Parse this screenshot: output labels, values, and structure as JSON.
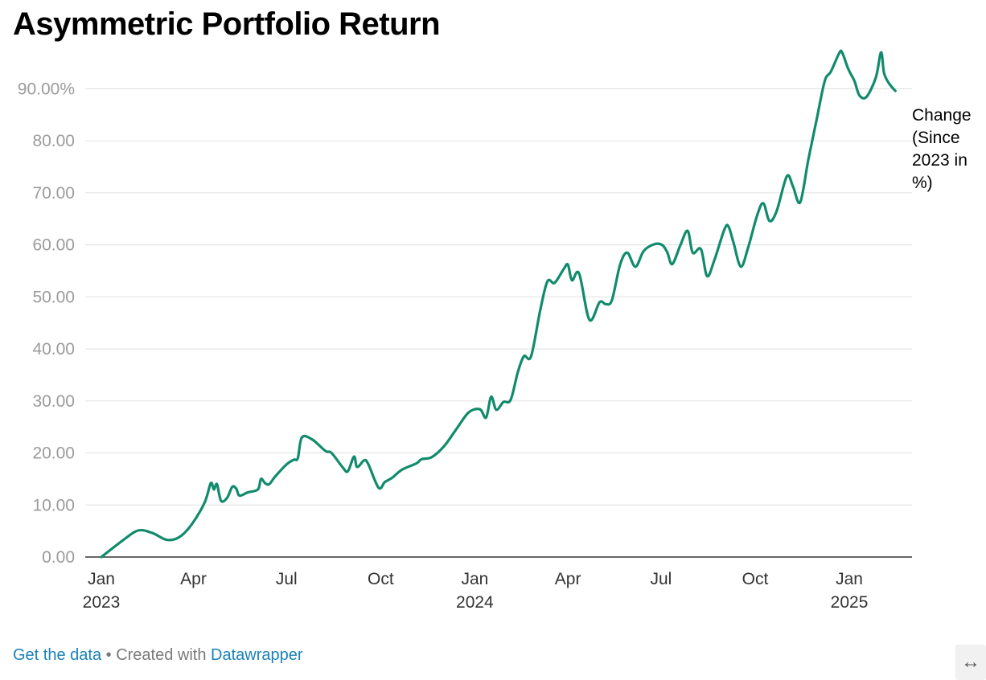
{
  "title": "Asymmetric Portfolio Return",
  "chart_data": {
    "type": "line",
    "title": "Asymmetric Portfolio Return",
    "xlabel": "",
    "ylabel": "",
    "ylim": [
      0,
      97.8
    ],
    "y_ticks": [
      0,
      10,
      20,
      30,
      40,
      50,
      60,
      70,
      80,
      90
    ],
    "y_tick_labels": [
      "0.00",
      "10.00",
      "20.00",
      "30.00",
      "40.00",
      "50.00",
      "60.00",
      "70.00",
      "80.00",
      "90.00%"
    ],
    "x_ticks": [
      {
        "date": "2023-01-01",
        "label": "Jan",
        "year": "2023"
      },
      {
        "date": "2023-04-01",
        "label": "Apr",
        "year": ""
      },
      {
        "date": "2023-07-01",
        "label": "Jul",
        "year": ""
      },
      {
        "date": "2023-10-01",
        "label": "Oct",
        "year": ""
      },
      {
        "date": "2024-01-01",
        "label": "Jan",
        "year": "2024"
      },
      {
        "date": "2024-04-01",
        "label": "Apr",
        "year": ""
      },
      {
        "date": "2024-07-01",
        "label": "Jul",
        "year": ""
      },
      {
        "date": "2024-10-01",
        "label": "Oct",
        "year": ""
      },
      {
        "date": "2025-01-01",
        "label": "Jan",
        "year": "2025"
      }
    ],
    "grid": true,
    "legend": "none",
    "color": "#118b6c",
    "series": [
      {
        "name": "Change (Since 2023 in %)",
        "points": [
          [
            "2023-01-01",
            0.0
          ],
          [
            "2023-01-22",
            3.2
          ],
          [
            "2023-02-06",
            5.1
          ],
          [
            "2023-02-20",
            4.6
          ],
          [
            "2023-03-06",
            3.3
          ],
          [
            "2023-03-18",
            3.8
          ],
          [
            "2023-03-30",
            6.2
          ],
          [
            "2023-04-12",
            10.5
          ],
          [
            "2023-04-18",
            14.2
          ],
          [
            "2023-04-21",
            13.0
          ],
          [
            "2023-04-24",
            14.0
          ],
          [
            "2023-04-28",
            10.8
          ],
          [
            "2023-05-04",
            11.4
          ],
          [
            "2023-05-09",
            13.5
          ],
          [
            "2023-05-13",
            13.1
          ],
          [
            "2023-05-16",
            11.8
          ],
          [
            "2023-05-24",
            12.4
          ],
          [
            "2023-06-03",
            13.0
          ],
          [
            "2023-06-06",
            15.0
          ],
          [
            "2023-06-10",
            14.2
          ],
          [
            "2023-06-14",
            14.0
          ],
          [
            "2023-06-20",
            15.5
          ],
          [
            "2023-07-01",
            17.8
          ],
          [
            "2023-07-08",
            18.7
          ],
          [
            "2023-07-12",
            19.0
          ],
          [
            "2023-07-16",
            23.0
          ],
          [
            "2023-07-26",
            22.6
          ],
          [
            "2023-08-08",
            20.4
          ],
          [
            "2023-08-14",
            20.0
          ],
          [
            "2023-08-25",
            17.2
          ],
          [
            "2023-08-30",
            16.5
          ],
          [
            "2023-09-05",
            19.3
          ],
          [
            "2023-09-08",
            17.3
          ],
          [
            "2023-09-15",
            18.6
          ],
          [
            "2023-09-19",
            17.8
          ],
          [
            "2023-09-29",
            13.3
          ],
          [
            "2023-10-05",
            14.4
          ],
          [
            "2023-10-12",
            15.2
          ],
          [
            "2023-10-22",
            16.8
          ],
          [
            "2023-11-05",
            18.0
          ],
          [
            "2023-11-10",
            18.8
          ],
          [
            "2023-11-20",
            19.2
          ],
          [
            "2023-12-02",
            21.3
          ],
          [
            "2023-12-14",
            24.6
          ],
          [
            "2023-12-26",
            27.8
          ],
          [
            "2024-01-06",
            28.4
          ],
          [
            "2024-01-12",
            26.8
          ],
          [
            "2024-01-17",
            30.8
          ],
          [
            "2024-01-22",
            28.3
          ],
          [
            "2024-01-29",
            29.8
          ],
          [
            "2024-02-05",
            30.2
          ],
          [
            "2024-02-12",
            35.5
          ],
          [
            "2024-02-18",
            38.6
          ],
          [
            "2024-02-25",
            38.6
          ],
          [
            "2024-03-05",
            47.5
          ],
          [
            "2024-03-12",
            53.0
          ],
          [
            "2024-03-19",
            52.7
          ],
          [
            "2024-03-28",
            55.4
          ],
          [
            "2024-04-01",
            56.2
          ],
          [
            "2024-04-05",
            53.2
          ],
          [
            "2024-04-12",
            54.5
          ],
          [
            "2024-04-22",
            45.6
          ],
          [
            "2024-05-02",
            49.0
          ],
          [
            "2024-05-08",
            48.6
          ],
          [
            "2024-05-14",
            49.4
          ],
          [
            "2024-05-22",
            56.2
          ],
          [
            "2024-05-29",
            58.5
          ],
          [
            "2024-06-06",
            55.8
          ],
          [
            "2024-06-14",
            58.8
          ],
          [
            "2024-06-24",
            60.1
          ],
          [
            "2024-07-02",
            60.0
          ],
          [
            "2024-07-07",
            58.6
          ],
          [
            "2024-07-12",
            56.3
          ],
          [
            "2024-07-20",
            60.0
          ],
          [
            "2024-07-27",
            62.7
          ],
          [
            "2024-08-01",
            58.5
          ],
          [
            "2024-08-09",
            59.2
          ],
          [
            "2024-08-15",
            54.0
          ],
          [
            "2024-08-22",
            57.0
          ],
          [
            "2024-09-01",
            63.0
          ],
          [
            "2024-09-05",
            63.5
          ],
          [
            "2024-09-10",
            60.3
          ],
          [
            "2024-09-17",
            55.8
          ],
          [
            "2024-09-24",
            59.4
          ],
          [
            "2024-10-03",
            65.7
          ],
          [
            "2024-10-09",
            68.0
          ],
          [
            "2024-10-15",
            64.6
          ],
          [
            "2024-10-22",
            66.5
          ],
          [
            "2024-11-01",
            73.2
          ],
          [
            "2024-11-07",
            71.2
          ],
          [
            "2024-11-14",
            68.2
          ],
          [
            "2024-11-22",
            76.4
          ],
          [
            "2024-11-30",
            84.0
          ],
          [
            "2024-12-08",
            91.5
          ],
          [
            "2024-12-14",
            93.3
          ],
          [
            "2024-12-22",
            96.8
          ],
          [
            "2024-12-25",
            97.0
          ],
          [
            "2024-12-31",
            93.8
          ],
          [
            "2025-01-06",
            91.5
          ],
          [
            "2025-01-11",
            88.7
          ],
          [
            "2025-01-18",
            88.5
          ],
          [
            "2025-01-27",
            92.2
          ],
          [
            "2025-02-01",
            97.0
          ],
          [
            "2025-02-04",
            93.0
          ],
          [
            "2025-02-09",
            91.0
          ],
          [
            "2025-02-15",
            89.6
          ]
        ]
      }
    ],
    "series_label_lines": [
      "Change",
      "(Since",
      "2023 in",
      "%)"
    ]
  },
  "footer": {
    "get_data": "Get the data",
    "separator": " • Created with ",
    "datawrapper": "Datawrapper"
  },
  "expand_icon": "↔"
}
